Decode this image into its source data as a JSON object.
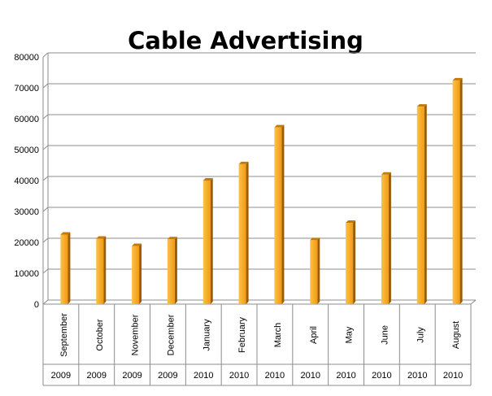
{
  "chart_data": {
    "type": "bar",
    "title": "Cable Advertising",
    "xlabel": "",
    "ylabel": "",
    "ylim": [
      0,
      80000
    ],
    "y_ticks": [
      "0",
      "10000",
      "20000",
      "30000",
      "40000",
      "50000",
      "60000",
      "70000",
      "80000"
    ],
    "grid": true,
    "legend": "none",
    "bar_color": "#F5A623",
    "categories": [
      "September",
      "October",
      "November",
      "December",
      "January",
      "February",
      "March",
      "April",
      "May",
      "June",
      "July",
      "August"
    ],
    "years": [
      "2009",
      "2009",
      "2009",
      "2009",
      "2010",
      "2010",
      "2010",
      "2010",
      "2010",
      "2010",
      "2010",
      "2010"
    ],
    "values": [
      22500,
      21200,
      18800,
      21000,
      40000,
      45300,
      57200,
      20700,
      26300,
      41900,
      63900,
      72400
    ]
  }
}
